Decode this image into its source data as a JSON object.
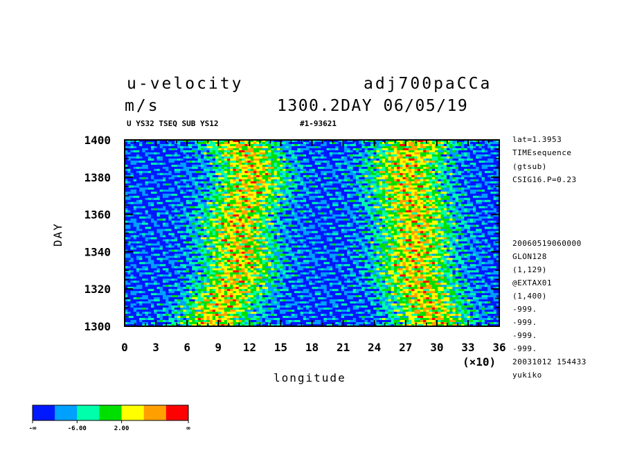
{
  "header": {
    "title_left": "u-velocity",
    "title_right": "adj700paCCa",
    "units": "m/s",
    "subtitle_right": "1300.2DAY 06/05/19",
    "sub_left": "U YS32 TSEQ SUB YS12",
    "sub_right": "#1-93621"
  },
  "info_panel": {
    "lines_top": [
      "lat=1.3953",
      "TIMEsequence",
      "(gtsub)",
      "CSIG16.P=0.23"
    ],
    "lines_bottom": [
      "20060519060000",
      "GLON128",
      "(1,129)",
      "@EXTAX01",
      "(1,400)",
      "-999.",
      "-999.",
      "-999.",
      "-999.",
      "20031012 154433",
      "yukiko"
    ]
  },
  "chart_data": {
    "type": "heatmap",
    "title": "u-velocity",
    "xlabel": "longitude",
    "ylabel": "DAY",
    "x_multiplier_label": "(×10)",
    "xlim": [
      0,
      36
    ],
    "ylim": [
      1300,
      1400
    ],
    "x_ticks": [
      "0",
      "3",
      "6",
      "9",
      "12",
      "15",
      "18",
      "21",
      "24",
      "27",
      "30",
      "33",
      "36"
    ],
    "y_ticks": [
      "1300",
      "1320",
      "1340",
      "1360",
      "1380",
      "1400"
    ],
    "colors": [
      "#0018ff",
      "#00a0ff",
      "#00ffaa",
      "#00e000",
      "#ffff00",
      "#ffa000",
      "#ff0000"
    ],
    "colorbar_labels": [
      "-∞",
      "-6.00",
      "2.00",
      "∞"
    ],
    "pattern": {
      "westerly_bands_center_lon": [
        10.5,
        28.0
      ],
      "easterly_bands_center_lon": [
        2.0,
        18.0,
        34.5
      ]
    }
  }
}
